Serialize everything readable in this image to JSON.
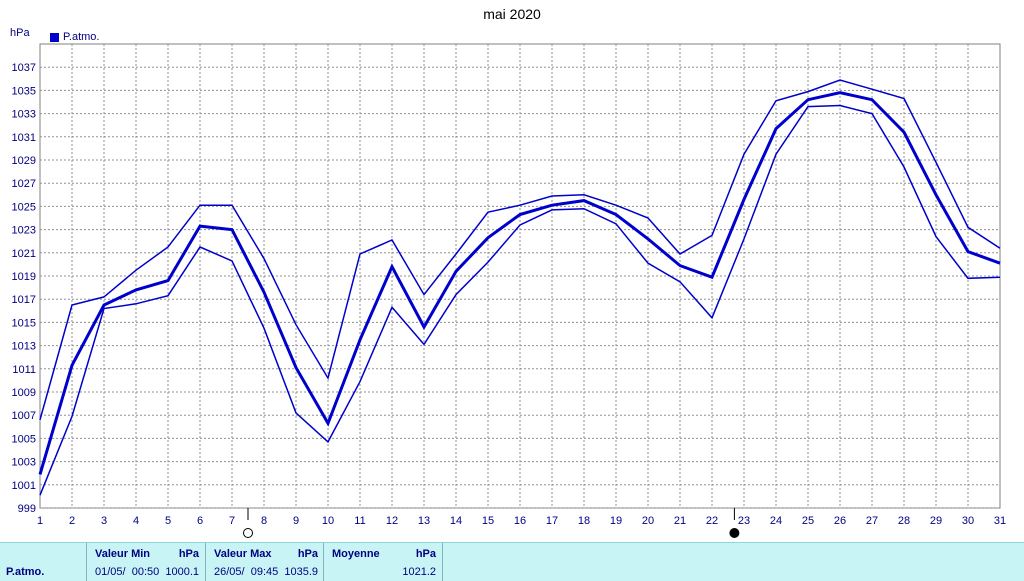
{
  "chart_data": {
    "type": "line",
    "title": "mai 2020",
    "ylabel": "hPa",
    "ylim": [
      999,
      1039
    ],
    "yticks": [
      999,
      1001,
      1003,
      1005,
      1007,
      1009,
      1011,
      1013,
      1015,
      1017,
      1019,
      1021,
      1023,
      1025,
      1027,
      1029,
      1031,
      1033,
      1035,
      1037
    ],
    "x": [
      "1",
      "2",
      "3",
      "4",
      "5",
      "6",
      "7",
      "8",
      "9",
      "10",
      "11",
      "12",
      "13",
      "14",
      "15",
      "16",
      "17",
      "18",
      "19",
      "20",
      "21",
      "22",
      "23",
      "24",
      "25",
      "26",
      "27",
      "28",
      "29",
      "30",
      "31"
    ],
    "grid": true,
    "legend": "top-left",
    "series": [
      {
        "name": "P.atmo.",
        "color": "#0000cc",
        "band_max": [
          1006.6,
          1016.5,
          1017.2,
          1019.5,
          1021.5,
          1025.1,
          1025.1,
          1020.5,
          1014.8,
          1010.2,
          1020.9,
          1022.1,
          1017.4,
          1020.9,
          1024.5,
          1025.1,
          1025.9,
          1026.0,
          1025.1,
          1024.0,
          1020.9,
          1022.5,
          1029.5,
          1034.1,
          1034.9,
          1035.9,
          1035.1,
          1034.3,
          1028.8,
          1023.2,
          1021.4
        ],
        "band_mean": [
          1001.9,
          1011.3,
          1016.5,
          1017.8,
          1018.6,
          1023.3,
          1023.0,
          1017.6,
          1011.1,
          1006.3,
          1013.5,
          1019.8,
          1014.6,
          1019.4,
          1022.3,
          1024.3,
          1025.1,
          1025.5,
          1024.3,
          1022.2,
          1019.9,
          1018.9,
          1025.6,
          1031.7,
          1034.2,
          1034.8,
          1034.2,
          1031.4,
          1026.0,
          1021.1,
          1020.1
        ],
        "band_min": [
          1000.1,
          1006.9,
          1016.2,
          1016.6,
          1017.3,
          1021.5,
          1020.3,
          1014.5,
          1007.2,
          1004.7,
          1009.9,
          1016.3,
          1013.1,
          1017.4,
          1020.2,
          1023.4,
          1024.7,
          1024.8,
          1023.5,
          1020.1,
          1018.5,
          1015.4,
          1022.2,
          1029.5,
          1033.6,
          1033.7,
          1033.0,
          1028.4,
          1022.4,
          1018.8,
          1018.9
        ]
      }
    ],
    "moon_phases": [
      {
        "day": 7.5,
        "phase": "full-moon"
      },
      {
        "day": 22.7,
        "phase": "new-moon"
      }
    ]
  },
  "footer": {
    "series_label": "P.atmo.",
    "min": {
      "header": "Valeur Min",
      "unit": "hPa",
      "date": "01/05/",
      "time": "00:50",
      "value": "1000.1"
    },
    "max": {
      "header": "Valeur Max",
      "unit": "hPa",
      "date": "26/05/",
      "time": "09:45",
      "value": "1035.9"
    },
    "mean": {
      "header": "Moyenne",
      "unit": "hPa",
      "value": "1021.2"
    }
  }
}
